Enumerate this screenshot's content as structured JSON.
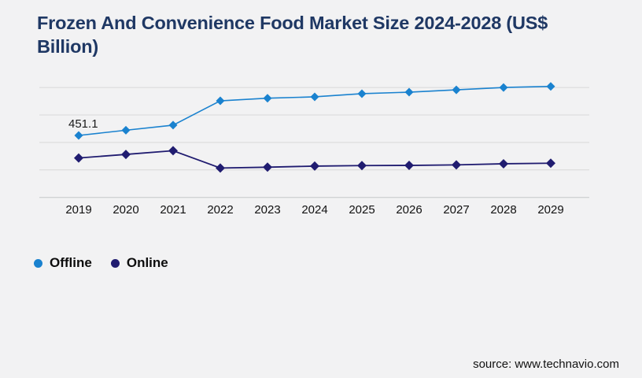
{
  "header": {
    "title": "Frozen And Convenience Food Market Size 2024-2028 (US$ Billion)"
  },
  "chart_data": {
    "type": "line",
    "title": "Frozen And Convenience Food Market Size 2024-2028 (US$ Billion)",
    "categories": [
      "2019",
      "2020",
      "2021",
      "2022",
      "2023",
      "2024",
      "2025",
      "2026",
      "2027",
      "2028",
      "2029"
    ],
    "series": [
      {
        "name": "Offline",
        "color": "#1a82cf",
        "marker": "diamond",
        "values": [
          451.1,
          489,
          526,
          703,
          722,
          732,
          755,
          766,
          783,
          800,
          808
        ]
      },
      {
        "name": "Online",
        "color": "#201c70",
        "marker": "diamond",
        "values": [
          287,
          313,
          340,
          214,
          220,
          228,
          232,
          233,
          237,
          245,
          249
        ]
      }
    ],
    "point_labels": [
      {
        "series_index": 0,
        "category_index": 0,
        "text": "451.1"
      }
    ],
    "xlabel": "",
    "ylabel": "",
    "ylim": [
      0,
      800
    ],
    "y_gridline_step": 200,
    "y_tick_labels_visible": false,
    "grid": "horizontal",
    "legend_position": "bottom-left",
    "gridline_color": "#d8d8d8",
    "baseline_color": "#c5c7c9",
    "tick_label_color": "#111111"
  },
  "legend": {
    "items": [
      {
        "label": "Offline",
        "color": "#1a82cf"
      },
      {
        "label": "Online",
        "color": "#201c70"
      }
    ]
  },
  "footer": {
    "source_label": "source: www.technavio.com"
  }
}
